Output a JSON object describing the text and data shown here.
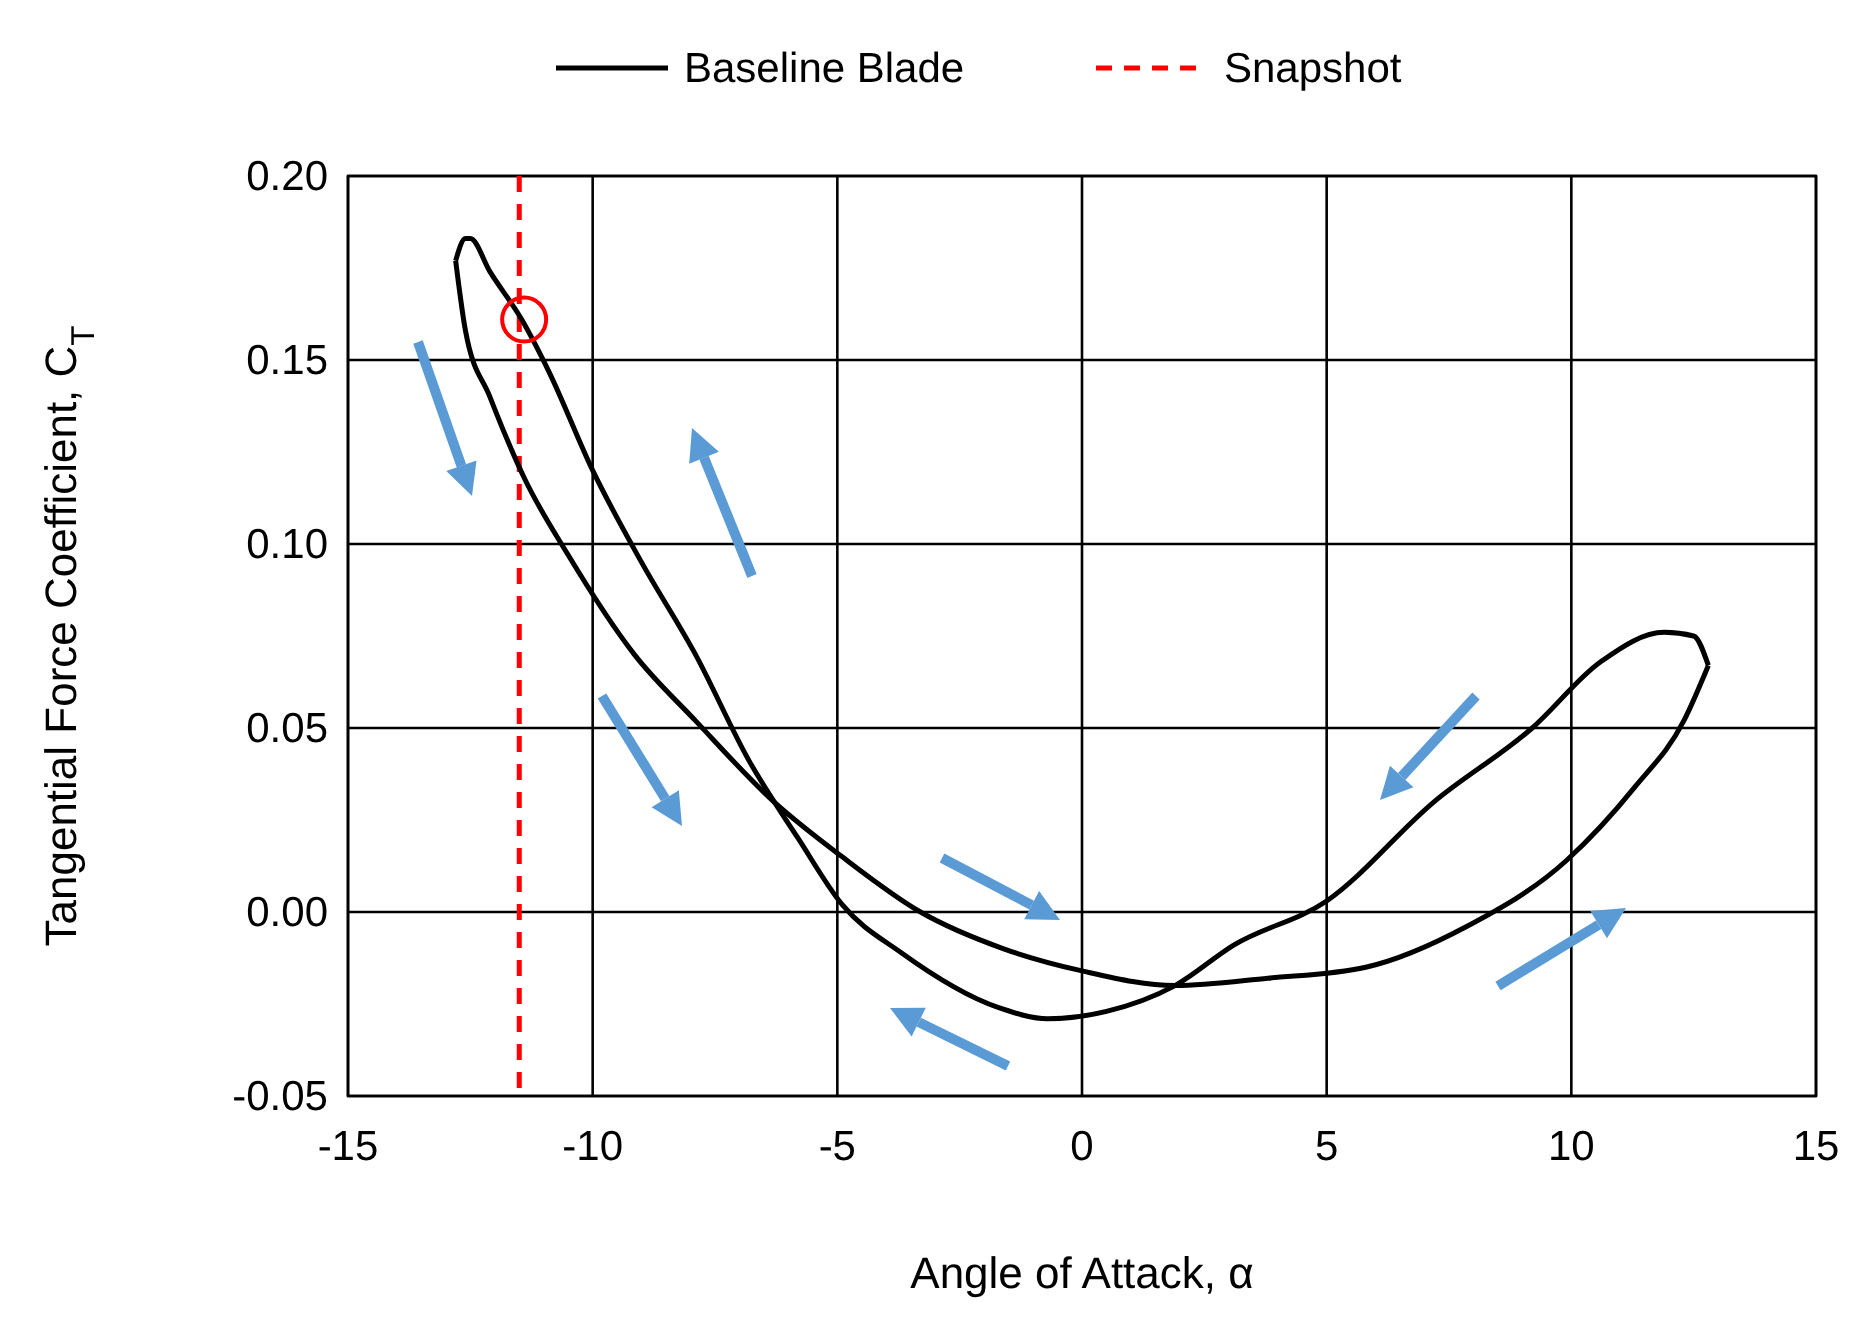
{
  "chart_data": {
    "type": "line",
    "xlabel": "Angle of Attack, α",
    "ylabel": "Tangential Force Coefficient, C$_{T}$",
    "xlim": [
      -15,
      15
    ],
    "xticks": [
      -15,
      -10,
      -5,
      0,
      5,
      10,
      15
    ],
    "ylim": [
      -0.05,
      0.2
    ],
    "yticks": [
      {
        "value": -0.05,
        "label": "-0.05"
      },
      {
        "value": 0,
        "label": "0.00"
      },
      {
        "value": 0.05,
        "label": "0.05"
      },
      {
        "value": 0.1,
        "label": "0.10"
      },
      {
        "value": 0.15,
        "label": "0.15"
      },
      {
        "value": 0.2,
        "label": "0.20"
      }
    ],
    "grid": true,
    "legend": "top",
    "marker": "none",
    "line_style": "solid",
    "series": [
      {
        "name": "Baseline Blade",
        "color": "#000000",
        "x": [
          -12.8,
          -12.6,
          -12.1,
          -11.4,
          -10.5,
          -9.15,
          -7.9,
          -6.3,
          -4.9,
          -3.3,
          -1.6,
          0,
          1.9,
          3.8,
          5.8,
          7.85,
          9.9,
          11.3,
          12.3,
          12.8
        ],
        "values": [
          0.177,
          0.158,
          0.14,
          0.118,
          0.097,
          0.07,
          0.052,
          0.03,
          0.015,
          0.0,
          -0.01,
          -0.016,
          -0.02,
          -0.018,
          -0.015,
          -0.004,
          0.014,
          0.034,
          0.052,
          0.067
        ]
      },
      {
        "color": "#000000",
        "x": [
          -12.8,
          -12.6,
          -12.5,
          -12.1,
          -11.45,
          -10.9,
          -10.0,
          -9.0,
          -7.9,
          -6.8,
          -5.8,
          -4.9,
          -3.7,
          -1.7,
          -0.7,
          0.5,
          1.9,
          3.1,
          5.0,
          7.2,
          9.2,
          10.6,
          11.9,
          12.5,
          12.8
        ],
        "values": [
          0.177,
          0.183,
          0.183,
          0.174,
          0.161,
          0.147,
          0.12,
          0.095,
          0.07,
          0.041,
          0.02,
          0.002,
          -0.011,
          -0.026,
          -0.029,
          -0.027,
          -0.02,
          -0.009,
          0.003,
          0.03,
          0.05,
          0.068,
          0.076,
          0.075,
          0.067
        ]
      },
      {
        "type": "scatter",
        "marker": "circle",
        "color": "#ff0000",
        "x": [
          -11.4
        ],
        "values": [
          0.161
        ]
      }
    ],
    "ref_lines": [
      {
        "axis": "x",
        "value": -11.5,
        "label": "Snapshot",
        "color": "#ff0000",
        "line_style": "dashed"
      }
    ]
  }
}
